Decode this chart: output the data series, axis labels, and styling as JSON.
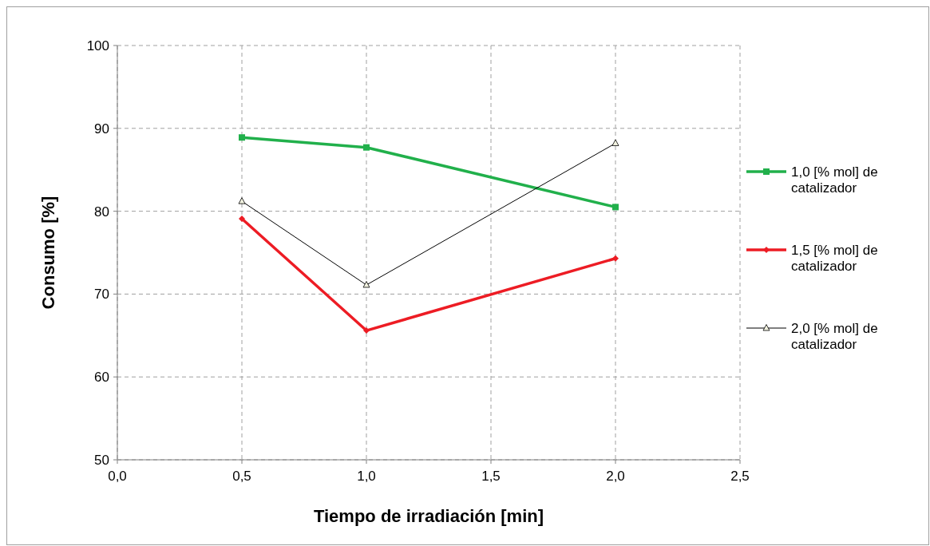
{
  "chart_data": {
    "type": "line",
    "xlabel": "Tiempo de irradiación [min]",
    "ylabel": "Consumo [%]",
    "xlim": [
      0,
      2.5
    ],
    "xticks": [
      {
        "value": 0,
        "label": "0,0"
      },
      {
        "value": 0.5,
        "label": "0,5"
      },
      {
        "value": 1,
        "label": "1,0"
      },
      {
        "value": 1.5,
        "label": "1,5"
      },
      {
        "value": 2,
        "label": "2,0"
      },
      {
        "value": 2.5,
        "label": "2,5"
      }
    ],
    "ylim": [
      50,
      100
    ],
    "yticks": [
      50,
      60,
      70,
      80,
      90,
      100
    ],
    "grid": true,
    "legend": "right",
    "line_style": "solid",
    "x": [
      0.5,
      1,
      2
    ],
    "series": [
      {
        "name": "1,0 [% mol] de catalizador",
        "color": "#21b04b",
        "values": [
          88.9,
          87.7,
          80.5
        ],
        "marker": "square"
      },
      {
        "name": "1,5 [% mol] de catalizador",
        "color": "#ed1c24",
        "values": [
          79.1,
          65.6,
          74.3
        ],
        "marker": "diamond"
      },
      {
        "name": "2,0 [% mol] de catalizador",
        "color": "#000000",
        "values": [
          81.2,
          71.1,
          88.2
        ],
        "marker": "triangle"
      }
    ]
  }
}
